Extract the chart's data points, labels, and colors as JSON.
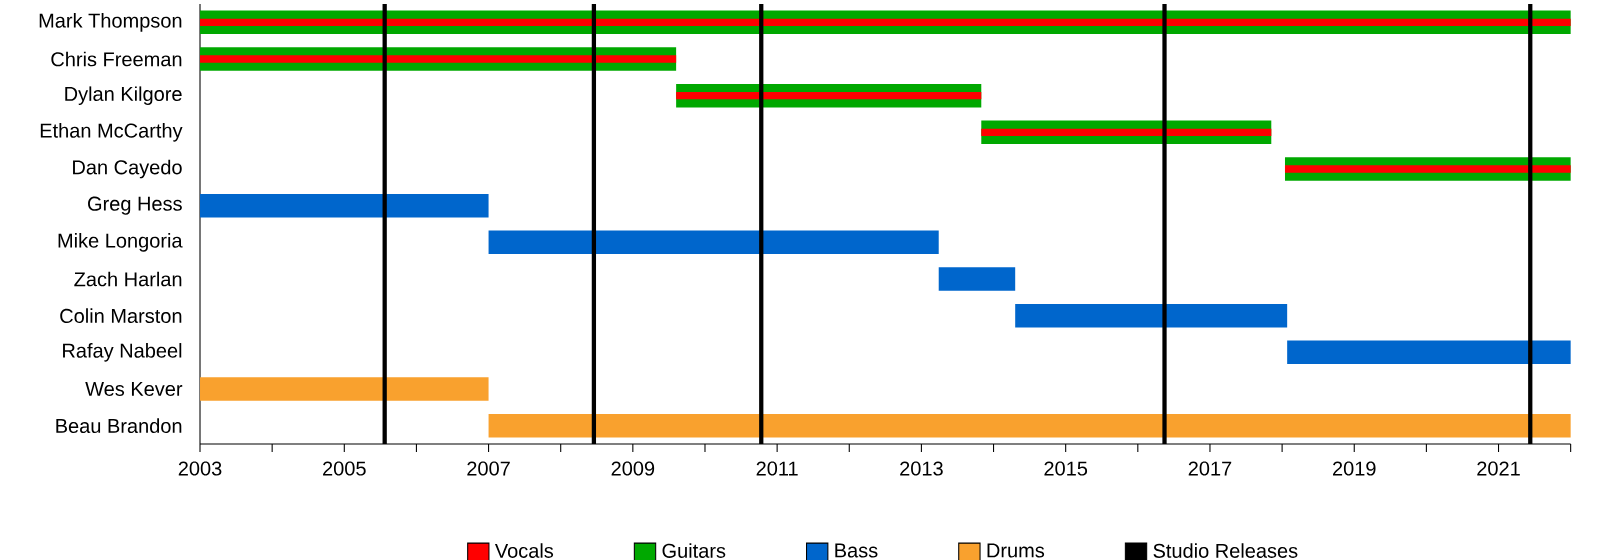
{
  "chart_data": {
    "type": "bar",
    "orientation": "horizontal",
    "categories": [
      "Mark Thompson",
      "Chris Freeman",
      "Dylan Kilgore",
      "Ethan McCarthy",
      "Dan Cayedo",
      "Greg Hess",
      "Mike Longoria",
      "Zach Harlan",
      "Colin Marston",
      "Rafay Nabeel",
      "Wes Kever",
      "Beau Brandon"
    ],
    "series": [
      {
        "name": "Vocals",
        "color": "#ff0000",
        "base": [
          2003,
          2003,
          2009.6,
          2013.83,
          2018.04,
          null,
          null,
          null,
          null,
          null,
          null,
          null
        ],
        "values": [
          19,
          6.6,
          4.23,
          4.02,
          3.96,
          null,
          null,
          null,
          null,
          null,
          null,
          null
        ]
      },
      {
        "name": "Guitars",
        "color": "#00a800",
        "base": [
          2003,
          2003,
          2009.6,
          2013.83,
          2018.04,
          null,
          null,
          null,
          null,
          null,
          null,
          null
        ],
        "values": [
          19,
          6.6,
          4.23,
          4.02,
          3.96,
          null,
          null,
          null,
          null,
          null,
          null,
          null
        ]
      },
      {
        "name": "Bass",
        "color": "#0066cc",
        "base": [
          null,
          null,
          null,
          null,
          null,
          2003,
          2007,
          2013.24,
          2014.3,
          2018.07,
          null,
          null
        ],
        "values": [
          null,
          null,
          null,
          null,
          null,
          4,
          6.24,
          1.06,
          3.77,
          3.93,
          null,
          null
        ]
      },
      {
        "name": "Drums",
        "color": "#f9a12e",
        "base": [
          null,
          null,
          null,
          null,
          null,
          null,
          null,
          null,
          null,
          null,
          2003,
          2007
        ],
        "values": [
          null,
          null,
          null,
          null,
          null,
          null,
          null,
          null,
          null,
          null,
          4,
          15
        ]
      }
    ],
    "ref_lines": [
      {
        "axis": "x",
        "value": 2005.56,
        "label": "Studio Releases",
        "color": "#000000"
      },
      {
        "axis": "x",
        "value": 2008.46,
        "label": null,
        "color": "#000000"
      },
      {
        "axis": "x",
        "value": 2010.78,
        "label": null,
        "color": "#000000"
      },
      {
        "axis": "x",
        "value": 2016.37,
        "label": null,
        "color": "#000000"
      },
      {
        "axis": "x",
        "value": 2021.44,
        "label": null,
        "color": "#000000"
      }
    ],
    "xlim": [
      2003,
      2022
    ],
    "xticks": [
      2003,
      {
        "value": 2004,
        "label": null
      },
      2005,
      {
        "value": 2006,
        "label": null
      },
      2007,
      {
        "value": 2008,
        "label": null
      },
      2009,
      {
        "value": 2010,
        "label": null
      },
      2011,
      {
        "value": 2012,
        "label": null
      },
      2013,
      {
        "value": 2014,
        "label": null
      },
      2015,
      {
        "value": 2016,
        "label": null
      },
      2017,
      {
        "value": 2018,
        "label": null
      },
      2019,
      {
        "value": 2020,
        "label": null
      },
      2021,
      {
        "value": 2022,
        "label": null
      }
    ],
    "legend": "bottom",
    "grid": false
  }
}
